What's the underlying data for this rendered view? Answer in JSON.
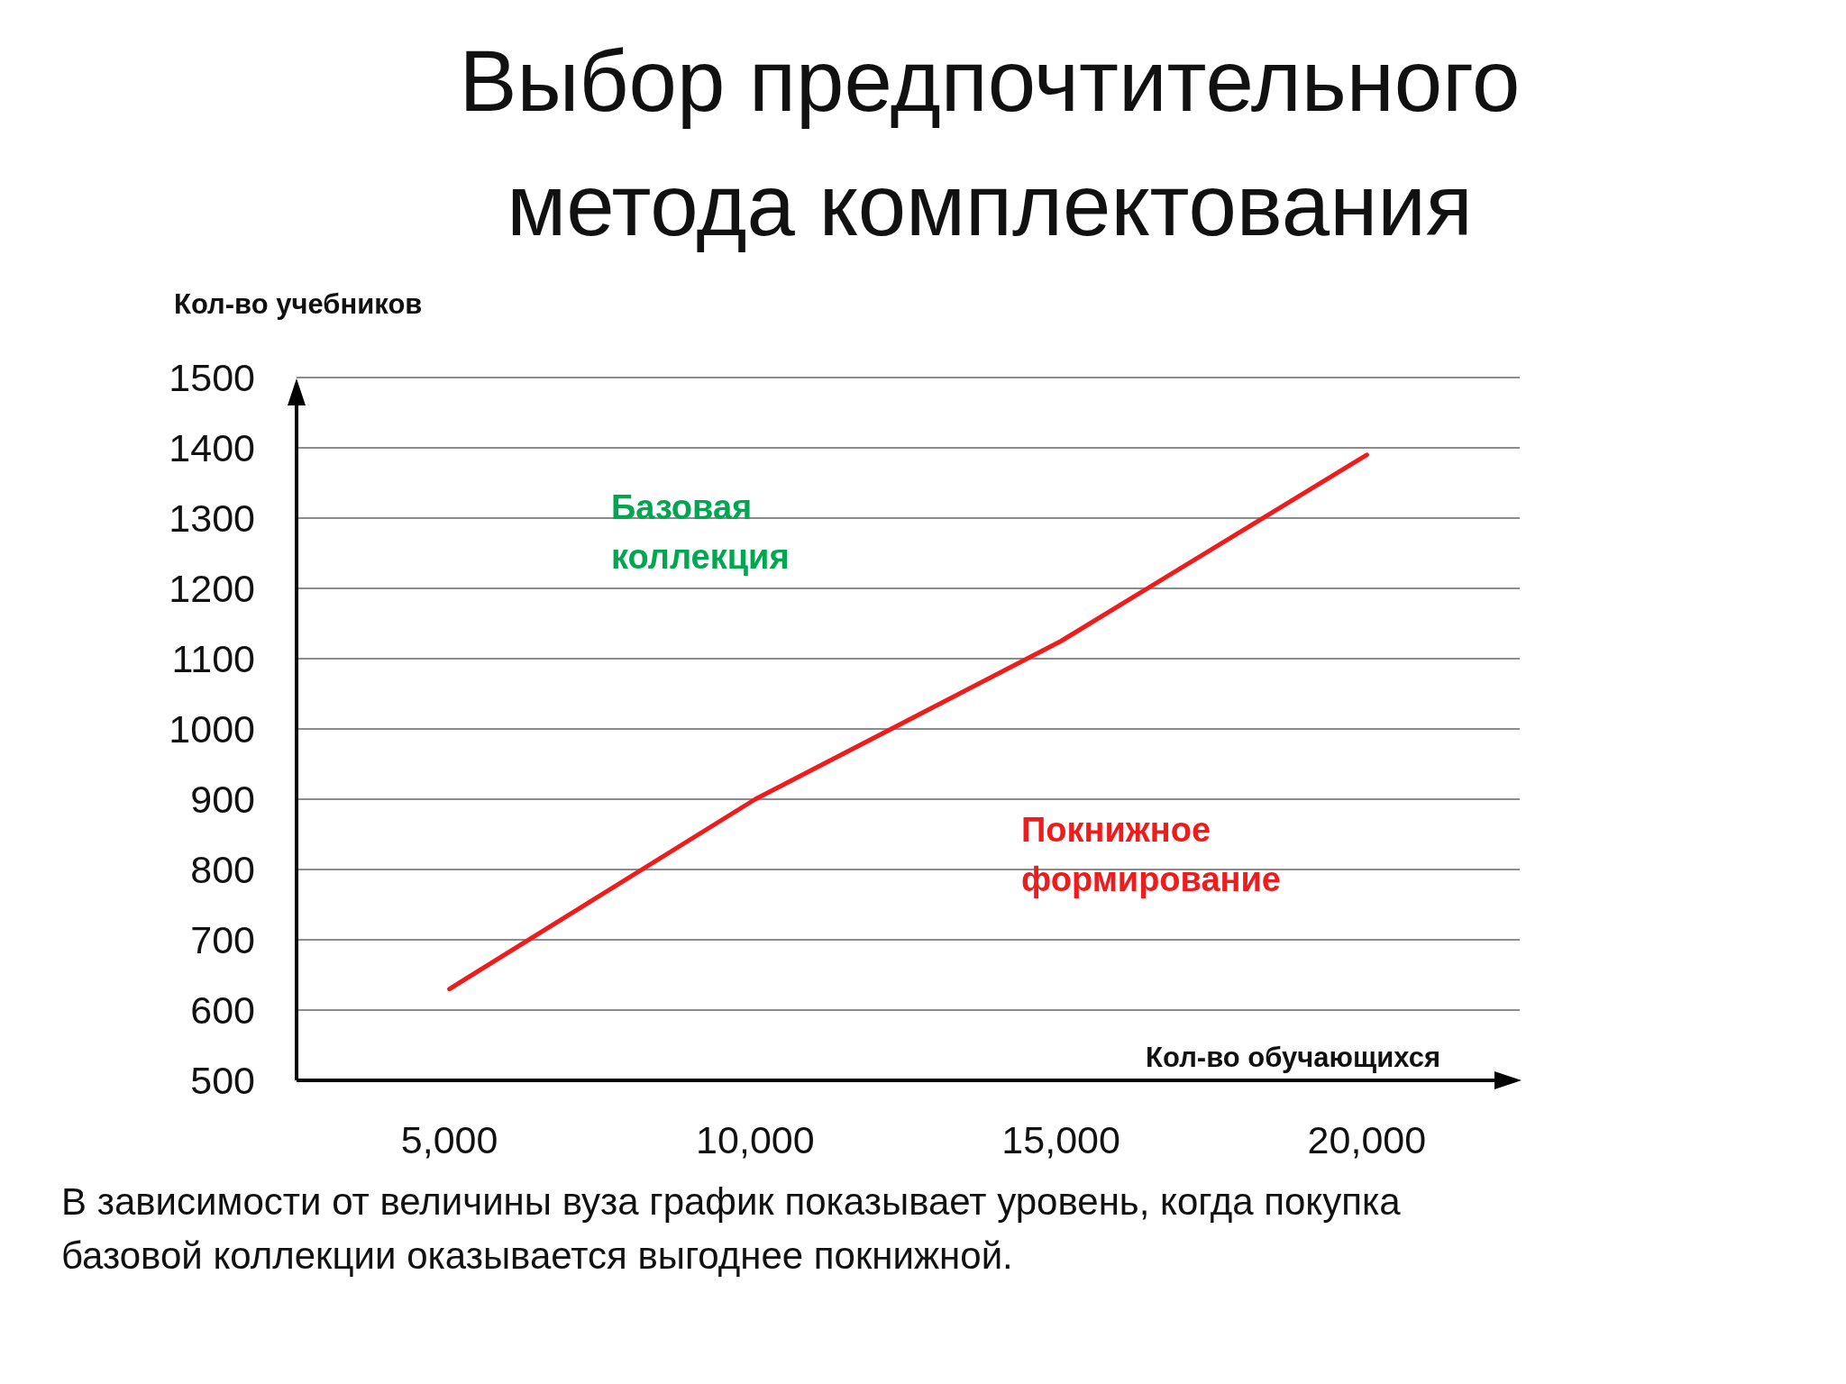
{
  "chart_data": {
    "type": "line",
    "title": "Выбор предпочтительного метода комплектования",
    "xlabel": "Кол-во обучающихся",
    "ylabel": "Кол-во учебников",
    "categories": [
      "5,000",
      "10,000",
      "15,000",
      "20,000"
    ],
    "series": [
      {
        "color": "#ee1c1c",
        "values": [
          630,
          900,
          1125,
          1390
        ]
      }
    ],
    "ylim": [
      500,
      1500
    ],
    "yticks": [
      500,
      600,
      700,
      800,
      900,
      1000,
      1100,
      1200,
      1300,
      1400,
      1500
    ],
    "grid": "y",
    "marker": "none",
    "line_style": "solid",
    "annotations": [
      "Базовая коллекция",
      "Покнижное формирование",
      "В зависимости от величины вуза график показывает уровень, когда покупка базовой коллекции оказывается выгоднее покнижной."
    ]
  }
}
